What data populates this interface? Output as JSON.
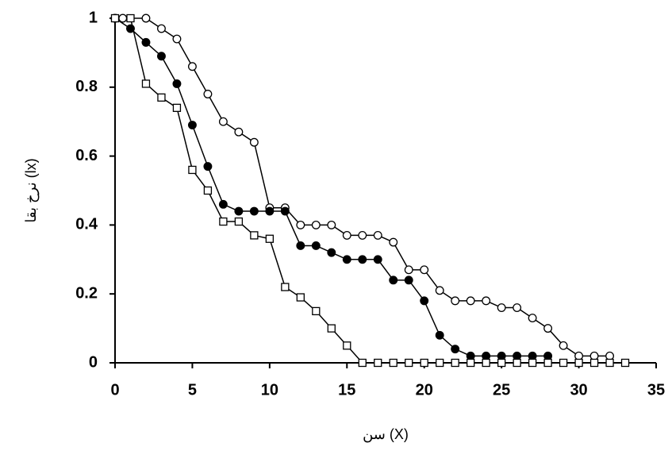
{
  "chart_data": {
    "type": "line",
    "xlabel": "سن (X)",
    "ylabel": "نرخ بقا (lx)",
    "xlim": [
      0,
      35
    ],
    "xticks": [
      0,
      5,
      10,
      15,
      20,
      25,
      30,
      35
    ],
    "ylim": [
      0,
      1
    ],
    "yticks": [
      0,
      0.2,
      0.4,
      0.6,
      0.8,
      1
    ],
    "grid": false,
    "series": [
      {
        "color": "#000000",
        "marker": "open-circle",
        "x": [
          0,
          0.5,
          2,
          3,
          4,
          5,
          6,
          7,
          8,
          9,
          10,
          11,
          12,
          13,
          14,
          15,
          16,
          17,
          18,
          19,
          20,
          21,
          22,
          23,
          24,
          25,
          26,
          27,
          28,
          29,
          30,
          31,
          32
        ],
        "values": [
          1,
          1,
          1,
          0.97,
          0.94,
          0.86,
          0.78,
          0.7,
          0.67,
          0.64,
          0.45,
          0.45,
          0.4,
          0.4,
          0.4,
          0.37,
          0.37,
          0.37,
          0.35,
          0.27,
          0.27,
          0.21,
          0.18,
          0.18,
          0.18,
          0.16,
          0.16,
          0.13,
          0.1,
          0.05,
          0.02,
          0.02,
          0.02
        ]
      },
      {
        "color": "#000000",
        "marker": "filled-circle",
        "x": [
          0,
          1,
          2,
          3,
          4,
          5,
          6,
          7,
          8,
          9,
          10,
          11,
          12,
          13,
          14,
          15,
          16,
          17,
          18,
          19,
          20,
          21,
          22,
          23,
          24,
          25,
          26,
          27,
          28
        ],
        "values": [
          1,
          0.97,
          0.93,
          0.89,
          0.81,
          0.69,
          0.57,
          0.46,
          0.44,
          0.44,
          0.44,
          0.44,
          0.34,
          0.34,
          0.32,
          0.3,
          0.3,
          0.3,
          0.24,
          0.24,
          0.18,
          0.08,
          0.04,
          0.02,
          0.02,
          0.02,
          0.02,
          0.02,
          0.02
        ]
      },
      {
        "color": "#000000",
        "marker": "open-square",
        "x": [
          0,
          1,
          2,
          3,
          4,
          5,
          6,
          7,
          8,
          9,
          10,
          11,
          12,
          13,
          14,
          15,
          16,
          17,
          18,
          19,
          20,
          21,
          22,
          23,
          24,
          25,
          26,
          27,
          28,
          29,
          30,
          31,
          32,
          33
        ],
        "values": [
          1,
          1,
          0.81,
          0.77,
          0.74,
          0.56,
          0.5,
          0.41,
          0.41,
          0.37,
          0.36,
          0.22,
          0.19,
          0.15,
          0.1,
          0.05,
          0,
          0,
          0,
          0,
          0,
          0,
          0,
          0,
          0,
          0,
          0,
          0,
          0,
          0,
          0,
          0,
          0,
          0
        ]
      }
    ]
  }
}
